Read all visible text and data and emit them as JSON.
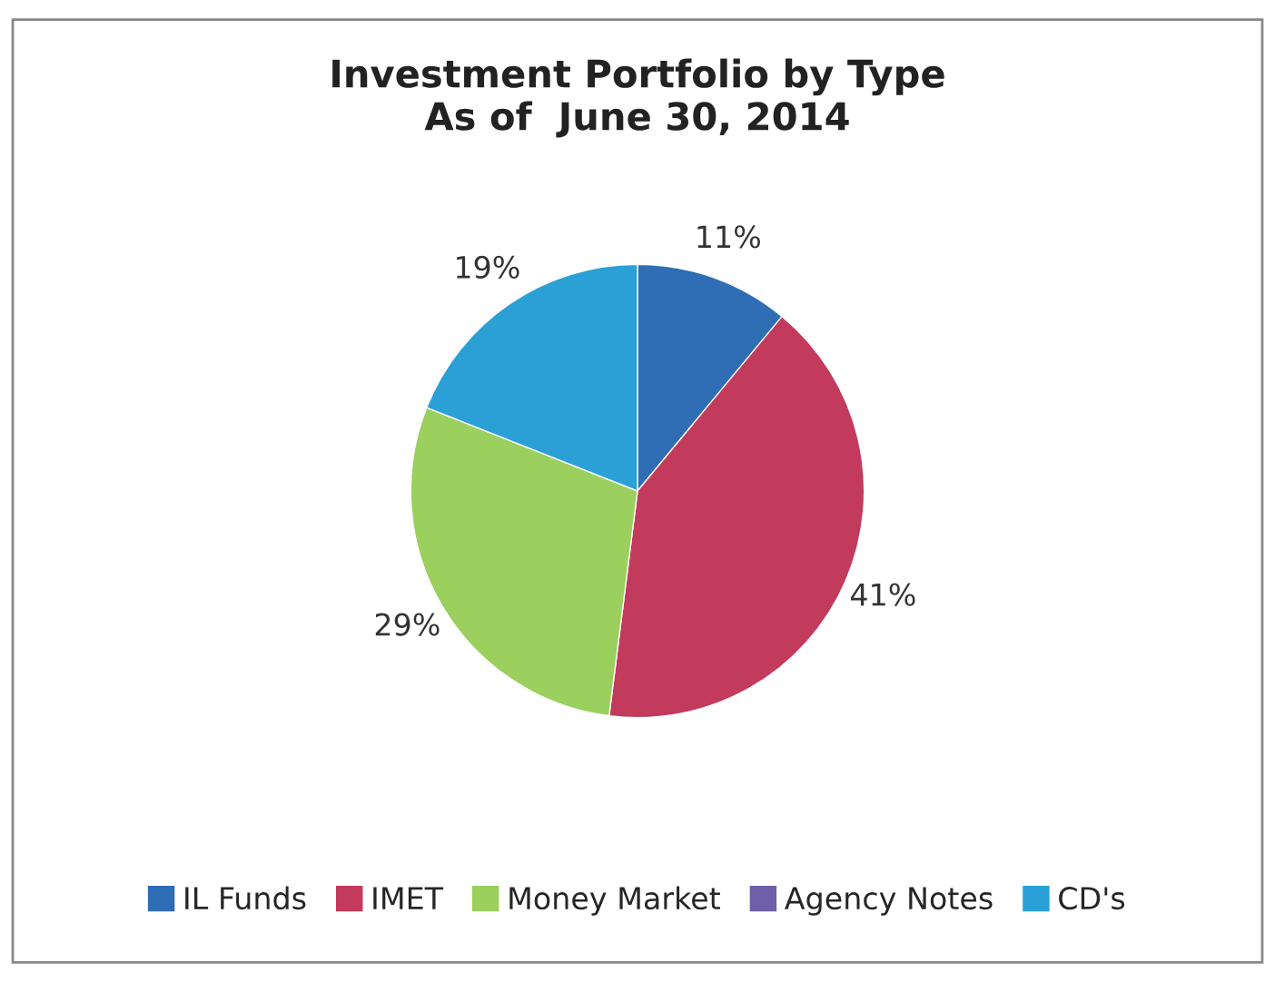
{
  "chart_data": {
    "type": "pie",
    "title": "Investment Portfolio by Type\nAs of  June 30, 2014",
    "categories": [
      "IL Funds",
      "IMET",
      "Money Market",
      "Agency Notes",
      "CD's"
    ],
    "values": [
      11,
      41,
      29,
      0,
      19
    ],
    "value_labels": [
      "11%",
      "41%",
      "29%",
      null,
      "19%"
    ],
    "colors": [
      "#2f6db5",
      "#c23a5c",
      "#9bcf5e",
      "#6f5fa8",
      "#2aa0d6"
    ],
    "legend": "bottom"
  }
}
